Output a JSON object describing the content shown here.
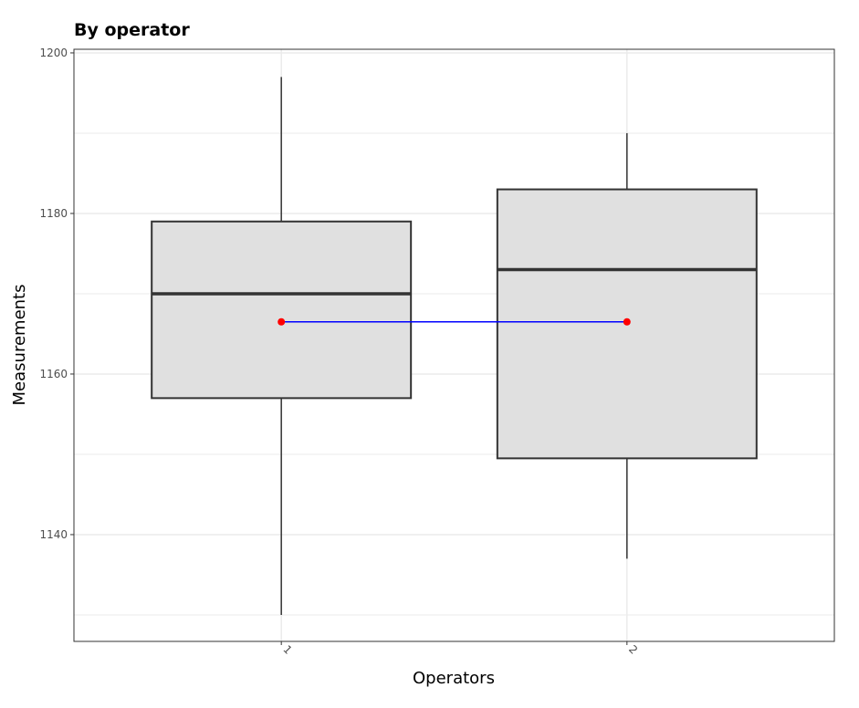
{
  "chart_data": {
    "type": "box",
    "title": "By operator",
    "xlabel": "Operators",
    "ylabel": "Measurements",
    "categories": [
      "1",
      "2"
    ],
    "boxes": [
      {
        "category": "1",
        "whisker_low": 1130,
        "q1": 1157,
        "median": 1170,
        "q3": 1179,
        "whisker_high": 1197,
        "mean": 1166.5
      },
      {
        "category": "2",
        "whisker_low": 1137,
        "q1": 1149.5,
        "median": 1173,
        "q3": 1183,
        "whisker_high": 1190,
        "mean": 1166.5
      }
    ],
    "ylim": [
      1126.7,
      1200.45
    ],
    "yticks": [
      1140,
      1160,
      1180,
      1200
    ],
    "grid": true,
    "colors": {
      "box_fill": "#e0e0e0",
      "box_stroke": "#333333",
      "mean_point": "#ff0000",
      "mean_line": "#0000ff",
      "grid": "#ebebeb"
    }
  }
}
